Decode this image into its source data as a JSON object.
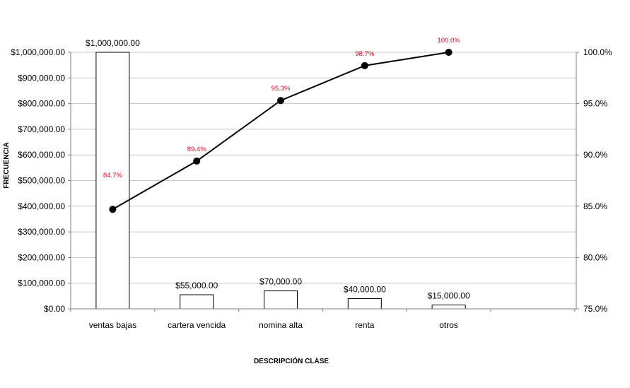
{
  "chart_data": {
    "type": "bar",
    "categories": [
      "ventas bajas",
      "cartera vencida",
      "nomina alta",
      "renta",
      "otros"
    ],
    "series": [
      {
        "type": "bar",
        "axis": "left",
        "values": [
          1000000,
          55000,
          70000,
          40000,
          15000
        ],
        "labels": [
          "$1,000,000.00",
          "$55,000.00",
          "$70,000.00",
          "$40,000.00",
          "$15,000.00"
        ]
      },
      {
        "type": "line",
        "axis": "right",
        "values": [
          84.7,
          89.4,
          95.3,
          98.7,
          100.0
        ],
        "labels": [
          "84.7%",
          "89.4%",
          "95.3%",
          "98.7%",
          "100.0%"
        ]
      }
    ],
    "xlabel": "DESCRIPCIÓN CLASE",
    "ylabel": "FRECUENCIA",
    "ylim": [
      0,
      1000000
    ],
    "y2lim": [
      75,
      100
    ],
    "yticks": [
      "$0.00",
      "$100,000.00",
      "$200,000.00",
      "$300,000.00",
      "$400,000.00",
      "$500,000.00",
      "$600,000.00",
      "$700,000.00",
      "$800,000.00",
      "$900,000.00",
      "$1,000,000.00"
    ],
    "y2ticks": [
      "75.0%",
      "80.0%",
      "85.0%",
      "90.0%",
      "95.0%",
      "100.0%"
    ],
    "grid": true,
    "legend": "none",
    "colors": {
      "bar_fill": "#ffffff",
      "bar_stroke": "#000000",
      "line": "#000000",
      "pct_label": "#e0001b",
      "grid": "#c8c8c8"
    }
  }
}
